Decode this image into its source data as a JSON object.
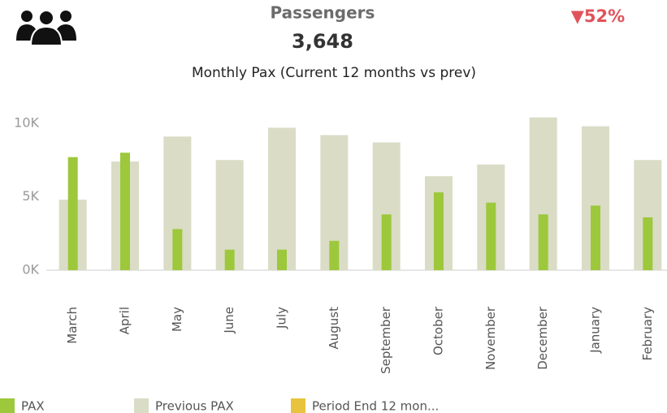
{
  "chart_data": {
    "type": "bar",
    "kpi": {
      "label": "Passengers",
      "value": "3,648",
      "change": "▼52%"
    },
    "title": "Monthly Pax (Current 12 months vs prev)",
    "categories": [
      "March",
      "April",
      "May",
      "June",
      "July",
      "August",
      "September",
      "October",
      "November",
      "December",
      "January",
      "February"
    ],
    "series": [
      {
        "name": "PAX",
        "color": "#9dc83b",
        "values": [
          7700,
          8000,
          2800,
          1400,
          1400,
          2000,
          3800,
          5300,
          4600,
          3800,
          4400,
          3600
        ]
      },
      {
        "name": "Previous PAX",
        "color": "#dadcc6",
        "values": [
          4800,
          7400,
          9100,
          7500,
          9700,
          9200,
          8700,
          6400,
          7200,
          10400,
          9800,
          7500
        ]
      },
      {
        "name": "Period End 12 mon...",
        "color": "#e8c33e",
        "values": [
          null,
          null,
          null,
          null,
          null,
          null,
          null,
          null,
          null,
          null,
          null,
          null
        ]
      }
    ],
    "ylim": [
      0,
      10000
    ],
    "yticks": [
      {
        "value": 0,
        "label": "0K"
      },
      {
        "value": 5000,
        "label": "5K"
      },
      {
        "value": 10000,
        "label": "10K"
      }
    ],
    "grid": false
  }
}
